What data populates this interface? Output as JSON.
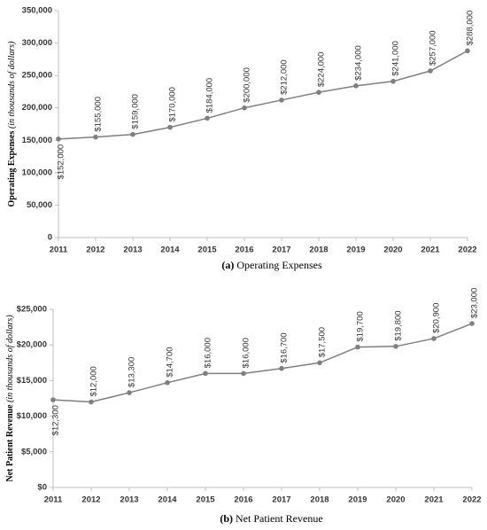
{
  "chart_data": [
    {
      "type": "line",
      "ylabel": "Operating Expenses",
      "ylabel_note": "(in thousands of dollars)",
      "caption_label": "(a)",
      "caption": "Operating Expenses",
      "categories": [
        "2011",
        "2012",
        "2013",
        "2014",
        "2015",
        "2016",
        "2017",
        "2018",
        "2019",
        "2020",
        "2021",
        "2022"
      ],
      "series": [
        {
          "color": "#7f7f7f",
          "values": [
            152000,
            155000,
            159000,
            170000,
            184000,
            200000,
            212000,
            224000,
            234000,
            241000,
            257000,
            288000
          ],
          "value_labels": [
            "$152,000",
            "$155,000",
            "$159,000",
            "$170,000",
            "$184,000",
            "$200,000",
            "$212,000",
            "$224,000",
            "$234,000",
            "$241,000",
            "$257,000",
            "$288,000"
          ]
        }
      ],
      "ylim": [
        0,
        350000
      ],
      "yticks": [
        0,
        {
          "value": 50000,
          "label": "50,000"
        },
        {
          "value": 100000,
          "label": "100,000"
        },
        {
          "value": 150000,
          "label": "150,000"
        },
        {
          "value": 200000,
          "label": "200,000"
        },
        {
          "value": 250000,
          "label": "250,000"
        },
        {
          "value": 300000,
          "label": "300,000"
        },
        {
          "value": 350000,
          "label": "350,000"
        }
      ]
    },
    {
      "type": "line",
      "ylabel": "Net Patient Revenue",
      "ylabel_note": "(in thousands of dollars)",
      "caption_label": "(b)",
      "caption": "Net Patient Revenue",
      "categories": [
        "2011",
        "2012",
        "2013",
        "2014",
        "2015",
        "2016",
        "2017",
        "2018",
        "2019",
        "2020",
        "2021",
        "2022"
      ],
      "series": [
        {
          "color": "#7f7f7f",
          "values": [
            12300,
            12000,
            13300,
            14700,
            16000,
            16000,
            16700,
            17500,
            19700,
            19800,
            20900,
            23000
          ],
          "value_labels": [
            "$12,300",
            "$12,000",
            "$13,300",
            "$14,700",
            "$16,000",
            "$16,000",
            "$16,700",
            "$17,500",
            "$19,700",
            "$19,800",
            "$20,900",
            "$23,000"
          ]
        }
      ],
      "ylim": [
        0,
        25000
      ],
      "yticks": [
        {
          "value": 0,
          "label": "$0"
        },
        {
          "value": 5000,
          "label": "$5,000"
        },
        {
          "value": 10000,
          "label": "$10,000"
        },
        {
          "value": 15000,
          "label": "$15,000"
        },
        {
          "value": 20000,
          "label": "$20,000"
        },
        {
          "value": 25000,
          "label": "$25,000"
        }
      ]
    }
  ]
}
